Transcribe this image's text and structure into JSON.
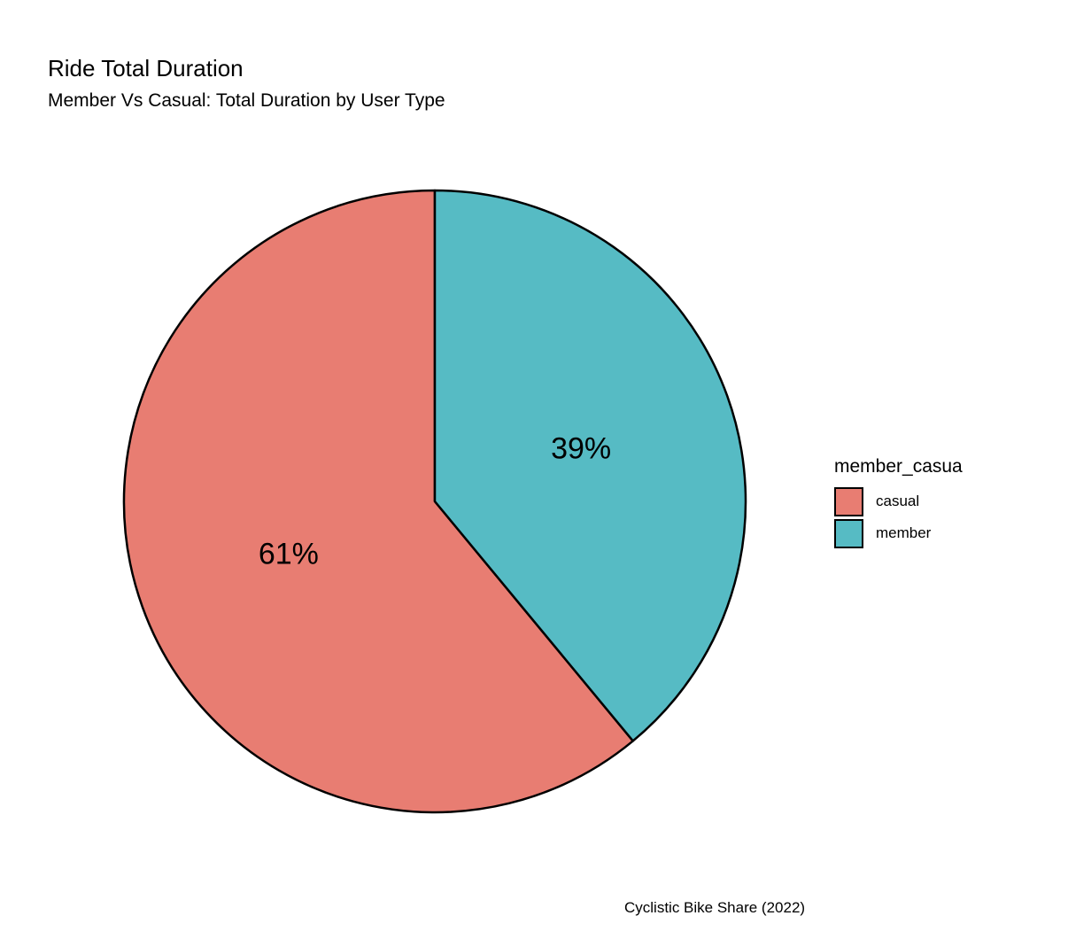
{
  "chart_data": {
    "type": "pie",
    "title": "Ride Total Duration",
    "subtitle": "Member Vs Casual: Total Duration by User Type",
    "caption": "Cyclistic Bike Share (2022)",
    "legend": {
      "title": "member_casua",
      "placement": "right"
    },
    "slices": [
      {
        "name": "casual",
        "value": 61,
        "label": "61%",
        "color": "#E87D72"
      },
      {
        "name": "member",
        "value": 39,
        "label": "39%",
        "color": "#56BBC4"
      }
    ],
    "start": "top",
    "direction": "counterclockwise"
  }
}
